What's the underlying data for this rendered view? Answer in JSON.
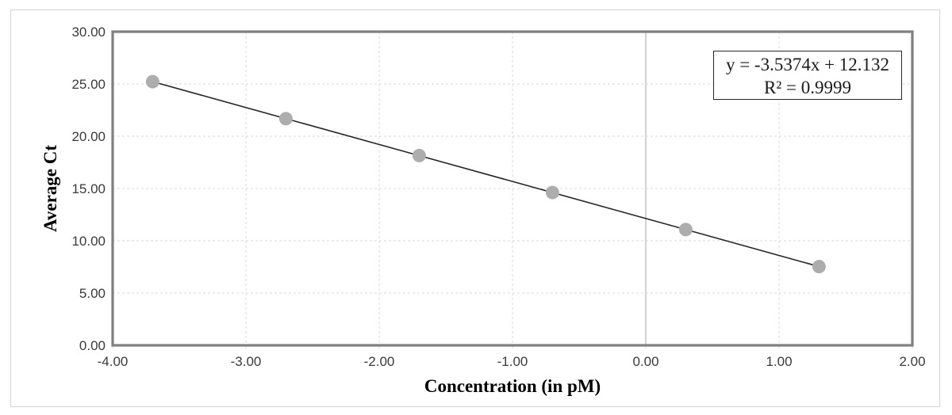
{
  "chart_data": {
    "type": "scatter",
    "title": "",
    "xlabel": "Concentration (in pM)",
    "ylabel": "Average Ct",
    "xlim": [
      -4,
      2
    ],
    "ylim": [
      0,
      30
    ],
    "grid": true,
    "legend": false,
    "x_tick_values": [
      -4,
      -3,
      -2,
      -1,
      0,
      1,
      2
    ],
    "x_tick_labels": [
      "-4.00",
      "-3.00",
      "-2.00",
      "-1.00",
      "0.00",
      "1.00",
      "2.00"
    ],
    "y_tick_values": [
      0,
      5,
      10,
      15,
      20,
      25,
      30
    ],
    "y_tick_labels": [
      "0.00",
      "5.00",
      "10.00",
      "15.00",
      "20.00",
      "25.00",
      "30.00"
    ],
    "points": [
      {
        "x": -3.7,
        "y": 25.22
      },
      {
        "x": -2.7,
        "y": 21.68
      },
      {
        "x": -1.7,
        "y": 18.15
      },
      {
        "x": -0.7,
        "y": 14.61
      },
      {
        "x": 0.3,
        "y": 11.07
      },
      {
        "x": 1.3,
        "y": 7.53
      }
    ],
    "trendline": {
      "slope": -3.5374,
      "intercept": 12.132,
      "x_start": -3.7,
      "x_end": 1.3,
      "equation_label": "y = -3.5374x + 12.132",
      "r_squared_label": "R² = 0.9999"
    },
    "colors": {
      "marker": "#adadad",
      "trendline": "#262626",
      "gridline": "#d9d9d9",
      "zero_line": "#d2d2d2",
      "plot_border": "#808080",
      "tick_label": "#3a3a3a",
      "axis_title": "#000000",
      "chart_border": "#d3d3d3",
      "background": "#ffffff"
    }
  }
}
